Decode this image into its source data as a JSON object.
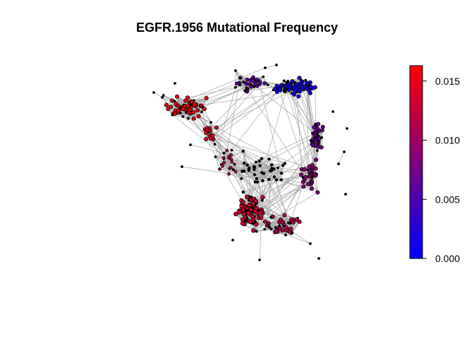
{
  "title": "EGFR.1956 Mutational Frequency",
  "colorbar": {
    "low_color": "#0000ff",
    "mid_color": "#800080",
    "high_color": "#ff0000",
    "min": 0.0,
    "max": 0.0163,
    "ticks": [
      {
        "value": 0.0,
        "label": "0.000"
      },
      {
        "value": 0.005,
        "label": "0.005"
      },
      {
        "value": 0.01,
        "label": "0.010"
      },
      {
        "value": 0.015,
        "label": "0.015"
      }
    ]
  },
  "network": {
    "edge_color": "#a8a8a8",
    "node_outline_color": "#000000",
    "description_layout": "ring-shaped co-occurrence network; red cluster upper-left, blue cluster top-right, purple along right side, magenta cluster at bottom"
  }
}
